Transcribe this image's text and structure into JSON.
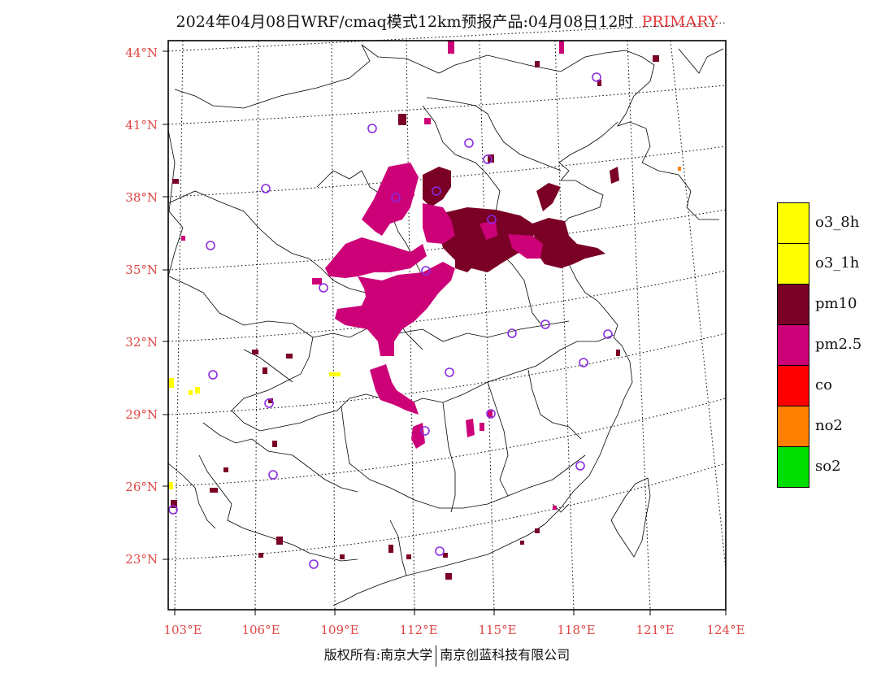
{
  "title": {
    "main": "2024年04月08日WRF/cmaq模式12km预报产品:04月08日12时",
    "tag": "PRIMARY",
    "tag_color": "#e33a3a"
  },
  "lat_labels": [
    "44°N",
    "41°N",
    "38°N",
    "35°N",
    "32°N",
    "29°N",
    "26°N",
    "23°N"
  ],
  "lon_labels": [
    "103°E",
    "106°E",
    "109°E",
    "112°E",
    "115°E",
    "118°E",
    "121°E",
    "124°E"
  ],
  "label_color": "#e04545",
  "legend": [
    {
      "label": "o3_8h",
      "color": "#ffff00"
    },
    {
      "label": "o3_1h",
      "color": "#ffff00"
    },
    {
      "label": "pm10",
      "color": "#7a0025"
    },
    {
      "label": "pm2.5",
      "color": "#cc0077"
    },
    {
      "label": "co",
      "color": "#ff0000"
    },
    {
      "label": "no2",
      "color": "#ff7f00"
    },
    {
      "label": "so2",
      "color": "#00dd00"
    }
  ],
  "footer": {
    "left": "版权所有:南京大学",
    "right": "南京创蓝科技有限公司"
  }
}
